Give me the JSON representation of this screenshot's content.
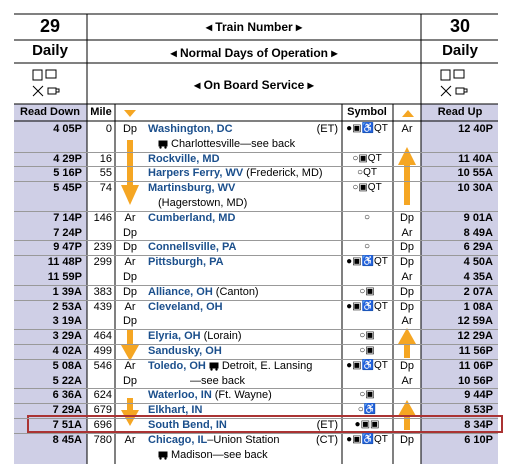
{
  "header": {
    "left_number": "29",
    "right_number": "30",
    "train_number": "◂ Train Number ▸",
    "left_days": "Daily",
    "right_days": "Daily",
    "days": "◂ Normal Days of Operation ▸",
    "service": "◂ On Board Service ▸"
  },
  "columns": {
    "read_down": "Read Down",
    "mile": "Mile",
    "symbol": "Symbol",
    "read_up": "Read Up"
  },
  "rows": [
    {
      "down": [
        "4 05P"
      ],
      "mile": "0",
      "down_ad": [
        "Dp"
      ],
      "name": "Washington, DC",
      "zone": "(ET)",
      "connection": "Charlottesville—see back",
      "symbol": "●▣♿QT",
      "up_ad": [
        "Ar"
      ],
      "up": [
        "12 40P"
      ]
    },
    {
      "down": [
        "4 29P"
      ],
      "mile": "16",
      "name": "Rockville, MD",
      "symbol": "○▣QT",
      "up": [
        "11 40A"
      ]
    },
    {
      "down": [
        "5 16P"
      ],
      "mile": "55",
      "name": "Harpers Ferry, WV",
      "extra": "(Frederick, MD)",
      "symbol": "○QT",
      "up": [
        "10 55A"
      ]
    },
    {
      "down": [
        "5 45P"
      ],
      "mile": "74",
      "name": "Martinsburg, WV",
      "sub": "(Hagerstown, MD)",
      "symbol": "○▣QT",
      "up": [
        "10 30A"
      ]
    },
    {
      "down": [
        "7 14P",
        "7 24P"
      ],
      "mile": "146",
      "down_ad": [
        "Ar",
        "Dp"
      ],
      "name": "Cumberland, MD",
      "symbol": "○",
      "up_ad": [
        "Dp",
        "Ar"
      ],
      "up": [
        "9 01A",
        "8 49A"
      ]
    },
    {
      "down": [
        "9 47P"
      ],
      "mile": "239",
      "down_ad": [
        "Dp"
      ],
      "name": "Connellsville, PA",
      "symbol": "○",
      "up_ad": [
        "Dp"
      ],
      "up": [
        "6 29A"
      ]
    },
    {
      "down": [
        "11 48P",
        "11 59P"
      ],
      "mile": "299",
      "down_ad": [
        "Ar",
        "Dp"
      ],
      "name": "Pittsburgh, PA",
      "symbol": "●▣♿QT",
      "up_ad": [
        "Dp",
        "Ar"
      ],
      "up": [
        "4 50A",
        "4 35A"
      ]
    },
    {
      "down": [
        "1 39A"
      ],
      "mile": "383",
      "down_ad": [
        "Dp"
      ],
      "name": "Alliance, OH",
      "extra": "(Canton)",
      "symbol": "○▣",
      "up_ad": [
        "Dp"
      ],
      "up": [
        "2 07A"
      ]
    },
    {
      "down": [
        "2 53A",
        "3 19A"
      ],
      "mile": "439",
      "down_ad": [
        "Ar",
        "Dp"
      ],
      "name": "Cleveland, OH",
      "symbol": "●▣♿QT",
      "up_ad": [
        "Dp",
        "Ar"
      ],
      "up": [
        "1 08A",
        "12 59A"
      ]
    },
    {
      "down": [
        "3 29A"
      ],
      "mile": "464",
      "name": "Elyria, OH",
      "extra": "(Lorain)",
      "symbol": "○▣",
      "up": [
        "12 29A"
      ]
    },
    {
      "down": [
        "4 02A"
      ],
      "mile": "499",
      "name": "Sandusky, OH",
      "symbol": "○▣",
      "up": [
        "11 56P"
      ]
    },
    {
      "down": [
        "5 08A",
        "5 22A"
      ],
      "mile": "546",
      "down_ad": [
        "Ar",
        "Dp"
      ],
      "name": "Toledo, OH",
      "connection": "Detroit, E. Lansing",
      "sub": "—see back",
      "symbol": "●▣♿QT",
      "up_ad": [
        "Dp",
        "Ar"
      ],
      "up": [
        "11 06P",
        "10 56P"
      ]
    },
    {
      "down": [
        "6 36A"
      ],
      "mile": "624",
      "name": "Waterloo, IN",
      "extra": "(Ft. Wayne)",
      "symbol": "○▣",
      "up": [
        "9 44P"
      ]
    },
    {
      "down": [
        "7 29A"
      ],
      "mile": "679",
      "name": "Elkhart, IN",
      "symbol": "○♿",
      "up": [
        "8 53P"
      ]
    },
    {
      "down": [
        "7 51A"
      ],
      "mile": "696",
      "name": "South Bend, IN",
      "zone": "(ET)",
      "symbol": "●▣▣",
      "up": [
        "8 34P"
      ]
    },
    {
      "down": [
        "8 45A"
      ],
      "mile": "780",
      "down_ad": [
        "Ar"
      ],
      "name": "Chicago, IL",
      "extra": "–Union Station",
      "zone": "(CT)",
      "connection": "Madison—see back",
      "symbol": "●▣♿QT",
      "up_ad": [
        "Dp"
      ],
      "up": [
        "6 10P"
      ]
    }
  ]
}
